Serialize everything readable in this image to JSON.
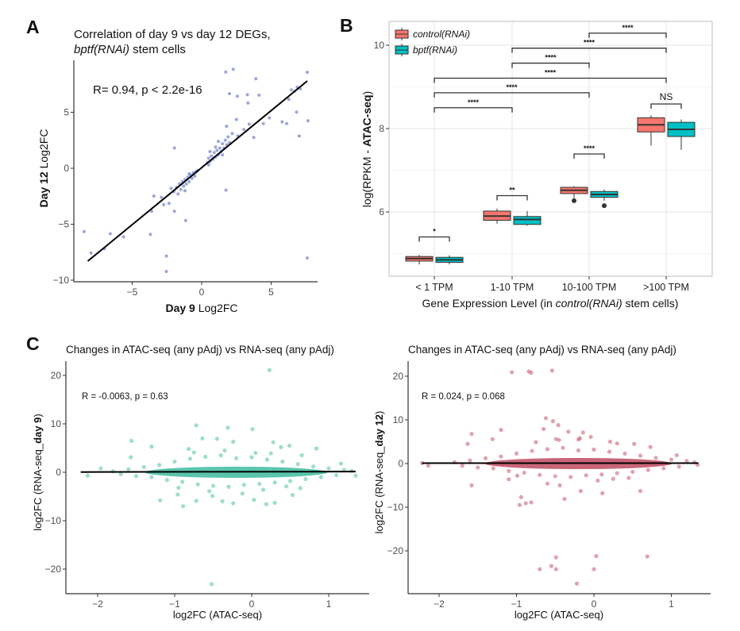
{
  "chart_data": [
    {
      "panel": "A",
      "type": "scatter",
      "title_line1": "Correlation of day 9 vs day 12 DEGs,",
      "title_line2_italic": "bptf(RNAi)",
      "title_line2_rest": " stem cells",
      "annotation": "R= 0.94, p < 2.2e-16",
      "xlabel_bold": "Day 9",
      "xlabel_rest": " Log2FC",
      "ylabel_bold": "Day 12",
      "ylabel_rest": " Log2FC",
      "xticks": [
        "-5",
        "0",
        "5"
      ],
      "yticks": [
        "-10",
        "-5",
        "0",
        "5"
      ],
      "xlim": [
        -8.6,
        8.9
      ],
      "ylim": [
        -10.1,
        9.7
      ],
      "point_color": "#6677c4",
      "line_color": "#000000",
      "fit_line": [
        [
          -8.2,
          -8.3
        ],
        [
          7.6,
          7.8
        ]
      ],
      "points": [
        [
          1.73,
          8.6
        ],
        [
          2.27,
          8.85
        ],
        [
          7.6,
          8.58
        ],
        [
          3.9,
          8.0
        ],
        [
          2.0,
          6.67
        ],
        [
          2.56,
          6.44
        ],
        [
          3.29,
          6.58
        ],
        [
          3.33,
          5.83
        ],
        [
          4.13,
          6.53
        ],
        [
          6.83,
          5.02
        ],
        [
          7.65,
          4.25
        ],
        [
          7.02,
          2.88
        ],
        [
          5.79,
          4.15
        ],
        [
          6.12,
          3.99
        ],
        [
          4.87,
          4.5
        ],
        [
          4.44,
          3.99
        ],
        [
          3.75,
          2.76
        ],
        [
          6.88,
          7.24
        ],
        [
          6.46,
          7.0
        ],
        [
          6.27,
          6.16
        ],
        [
          7.1,
          7.1
        ],
        [
          6.7,
          6.9
        ],
        [
          2.5,
          4.36
        ],
        [
          1.79,
          3.75
        ],
        [
          3.04,
          3.47
        ],
        [
          3.42,
          3.94
        ],
        [
          2.2,
          3.1
        ],
        [
          2.6,
          2.9
        ],
        [
          -1.96,
          1.82
        ],
        [
          1.75,
          -1.96
        ],
        [
          -1.15,
          -4.67
        ],
        [
          -1.96,
          -3.84
        ],
        [
          -2.54,
          -7.85
        ],
        [
          -2.54,
          -9.22
        ],
        [
          -3.69,
          -5.9
        ],
        [
          -3.6,
          -3.84
        ],
        [
          -3.44,
          -2.48
        ],
        [
          -5.62,
          -6.13
        ],
        [
          -6.58,
          -5.85
        ],
        [
          -8.46,
          -5.66
        ],
        [
          -7.96,
          -7.57
        ],
        [
          -7.0,
          -7.19
        ],
        [
          7.6,
          -8.02
        ],
        [
          -2.73,
          -3.25
        ],
        [
          -2.35,
          -3.14
        ],
        [
          -2.9,
          -2.6
        ],
        [
          -2.0,
          -2.1
        ],
        [
          -1.8,
          -1.7
        ],
        [
          -1.6,
          -1.4
        ],
        [
          -1.5,
          -1.9
        ],
        [
          -1.4,
          -1.2
        ],
        [
          -1.3,
          -1.6
        ],
        [
          -1.2,
          -1.0
        ],
        [
          -1.1,
          -1.4
        ],
        [
          -1.0,
          -0.8
        ],
        [
          -0.9,
          -1.2
        ],
        [
          -0.8,
          -0.6
        ],
        [
          -0.7,
          -0.9
        ],
        [
          -0.6,
          -0.4
        ],
        [
          -0.5,
          -0.7
        ],
        [
          -0.4,
          -0.3
        ],
        [
          -0.3,
          -0.2
        ],
        [
          -1.7,
          -2.3
        ],
        [
          -1.2,
          -2.0
        ],
        [
          -0.9,
          -0.5
        ],
        [
          -2.2,
          -1.8
        ],
        [
          0.4,
          0.5
        ],
        [
          0.5,
          0.9
        ],
        [
          0.6,
          0.6
        ],
        [
          0.7,
          1.1
        ],
        [
          0.8,
          0.8
        ],
        [
          0.9,
          1.4
        ],
        [
          1.0,
          1.0
        ],
        [
          1.1,
          1.6
        ],
        [
          1.2,
          1.2
        ],
        [
          1.3,
          1.8
        ],
        [
          1.4,
          1.5
        ],
        [
          1.5,
          2.2
        ],
        [
          1.6,
          1.8
        ],
        [
          1.7,
          2.5
        ],
        [
          1.8,
          2.1
        ],
        [
          0.6,
          1.5
        ],
        [
          1.2,
          2.4
        ],
        [
          1.9,
          2.8
        ],
        [
          0.5,
          0.3
        ],
        [
          1.0,
          1.9
        ],
        [
          1.5,
          1.2
        ],
        [
          2.0,
          2.3
        ]
      ]
    },
    {
      "panel": "B",
      "type": "box",
      "categories": [
        "< 1 TPM",
        "1-10 TPM",
        "10-100 TPM",
        ">100 TPM"
      ],
      "xlabel_pre": "Gene Expression Level (in ",
      "xlabel_italic": "control(RNAi)",
      "xlabel_post": " stem cells)",
      "ylabel_pre": "log(RPKM - ",
      "ylabel_bold": "ATAC-seq",
      "ylabel_post": ")",
      "yticks": [
        "6",
        "8",
        "10"
      ],
      "ylim": [
        4.46,
        10.57
      ],
      "grid": true,
      "legend_position": "top-left",
      "series": [
        {
          "name": "control(RNAi)",
          "color": "#f8766d",
          "boxes": [
            {
              "low": 4.74,
              "q1": 4.82,
              "median": 4.88,
              "q3": 4.93,
              "high": 4.97,
              "outliers": []
            },
            {
              "low": 5.72,
              "q1": 5.8,
              "median": 5.9,
              "q3": 6.02,
              "high": 6.08,
              "outliers": []
            },
            {
              "low": 6.33,
              "q1": 6.44,
              "median": 6.52,
              "q3": 6.59,
              "high": 6.62,
              "outliers": [
                6.27
              ]
            },
            {
              "low": 7.59,
              "q1": 7.92,
              "median": 8.09,
              "q3": 8.26,
              "high": 8.32,
              "outliers": []
            }
          ]
        },
        {
          "name": "bptf(RNAi)",
          "color": "#00bfc4",
          "boxes": [
            {
              "low": 4.74,
              "q1": 4.79,
              "median": 4.85,
              "q3": 4.91,
              "high": 4.96,
              "outliers": []
            },
            {
              "low": 5.67,
              "q1": 5.7,
              "median": 5.82,
              "q3": 5.89,
              "high": 6.02,
              "outliers": []
            },
            {
              "low": 6.27,
              "q1": 6.35,
              "median": 6.42,
              "q3": 6.49,
              "high": 6.54,
              "outliers": [
                6.15
              ]
            },
            {
              "low": 7.49,
              "q1": 7.81,
              "median": 7.98,
              "q3": 8.15,
              "high": 8.22,
              "outliers": []
            }
          ]
        }
      ],
      "within_group_tests": [
        {
          "category": 0,
          "y": 5.4,
          "label": "*"
        },
        {
          "category": 1,
          "y": 6.39,
          "label": "**"
        },
        {
          "category": 2,
          "y": 7.39,
          "label": "****"
        },
        {
          "category": 3,
          "y": 8.59,
          "label": "NS"
        }
      ],
      "between_group_tests": [
        {
          "from": 0,
          "to": 1,
          "y": 8.5,
          "label": "****"
        },
        {
          "from": 0,
          "to": 2,
          "y": 8.86,
          "label": "****"
        },
        {
          "from": 0,
          "to": 3,
          "y": 9.21,
          "label": "****"
        },
        {
          "from": 1,
          "to": 2,
          "y": 9.57,
          "label": "****"
        },
        {
          "from": 1,
          "to": 3,
          "y": 9.93,
          "label": "****"
        },
        {
          "from": 2,
          "to": 3,
          "y": 10.29,
          "label": "****"
        }
      ]
    },
    {
      "panel": "C",
      "type": "scatter",
      "title": "Changes in ATAC-seq (any pAdj) vs RNA-seq (any pAdj)",
      "annotation": "R = -0.0063, p = 0.63",
      "xlabel": "log2FC (ATAC-seq)",
      "ylabel_pre": "log2FC (RNA-seq_",
      "ylabel_bold": "day 9",
      "ylabel_post": ")",
      "xticks": [
        "-2",
        "-1",
        "0",
        "1"
      ],
      "yticks": [
        "-20",
        "-10",
        "0",
        "10",
        "20"
      ],
      "xlim": [
        -2.41,
        1.53
      ],
      "ylim": [
        -25,
        23
      ],
      "point_color": "#3dbb9e",
      "fit_line": [
        [
          -2.22,
          0.05
        ],
        [
          1.35,
          0.15
        ]
      ],
      "points": [
        [
          0.23,
          21.1
        ],
        [
          -0.72,
          9.7
        ],
        [
          -0.31,
          9.2
        ],
        [
          0.01,
          8.9
        ],
        [
          -1.56,
          6.5
        ],
        [
          -1.3,
          5.3
        ],
        [
          -0.45,
          6.9
        ],
        [
          -0.24,
          6.3
        ],
        [
          0.28,
          6.2
        ],
        [
          0.49,
          5.5
        ],
        [
          0.84,
          4.9
        ],
        [
          1.16,
          1.8
        ],
        [
          -1.19,
          -5.8
        ],
        [
          -0.96,
          -4.6
        ],
        [
          -0.89,
          -7.0
        ],
        [
          -0.72,
          -5.9
        ],
        [
          -0.51,
          -4.9
        ],
        [
          -0.38,
          -6.0
        ],
        [
          -0.24,
          -6.4
        ],
        [
          -0.12,
          -4.4
        ],
        [
          0.03,
          -5.7
        ],
        [
          0.19,
          -6.6
        ],
        [
          0.3,
          -6.3
        ],
        [
          0.53,
          -4.7
        ],
        [
          0.63,
          -3.3
        ],
        [
          -0.52,
          -23.1
        ],
        [
          -1.96,
          0.8
        ],
        [
          -2.13,
          -0.7
        ],
        [
          1.35,
          -0.7
        ],
        [
          -1.57,
          3.1
        ],
        [
          0.65,
          3.5
        ],
        [
          -0.82,
          4.8
        ],
        [
          -0.64,
          7.0
        ],
        [
          0.38,
          5.2
        ],
        [
          -1.8,
          0.2
        ],
        [
          -1.7,
          -0.4
        ],
        [
          -1.6,
          0.6
        ],
        [
          -1.5,
          -0.8
        ],
        [
          -1.4,
          1.1
        ],
        [
          -1.3,
          -1.0
        ],
        [
          -1.2,
          1.5
        ],
        [
          -1.1,
          -1.6
        ],
        [
          -1.0,
          2.2
        ],
        [
          -0.9,
          -2.0
        ],
        [
          -0.8,
          2.8
        ],
        [
          -0.7,
          -2.5
        ],
        [
          -0.6,
          3.2
        ],
        [
          -0.5,
          -2.8
        ],
        [
          -0.4,
          3.5
        ],
        [
          -0.3,
          -3.0
        ],
        [
          -0.2,
          2.9
        ],
        [
          -0.1,
          -2.6
        ],
        [
          0.0,
          3.1
        ],
        [
          0.1,
          -2.4
        ],
        [
          0.2,
          2.6
        ],
        [
          0.3,
          -2.1
        ],
        [
          0.4,
          2.2
        ],
        [
          0.5,
          -1.8
        ],
        [
          0.6,
          1.7
        ],
        [
          0.7,
          -1.4
        ],
        [
          0.8,
          1.2
        ],
        [
          0.9,
          -1.0
        ],
        [
          1.0,
          0.8
        ],
        [
          1.1,
          -0.6
        ],
        [
          1.2,
          0.5
        ],
        [
          1.3,
          0.3
        ],
        [
          -0.75,
          4.1
        ],
        [
          -0.35,
          4.5
        ],
        [
          0.05,
          4.0
        ],
        [
          0.25,
          3.9
        ],
        [
          -0.55,
          -3.9
        ],
        [
          0.15,
          -3.6
        ],
        [
          -0.95,
          -3.2
        ],
        [
          0.45,
          -2.9
        ]
      ]
    },
    {
      "panel": "C-right",
      "type": "scatter",
      "title": "Changes in ATAC-seq (any pAdj) vs RNA-seq (any pAdj)",
      "annotation": "R = 0.024, p = 0.068",
      "xlabel": "log2FC (ATAC-seq)",
      "ylabel_pre": "log2FC (RNA-seq_",
      "ylabel_bold": "day 12",
      "ylabel_post": ")",
      "xticks": [
        "-2",
        "-1",
        "0",
        "1"
      ],
      "yticks": [
        "-20",
        "-10",
        "0",
        "10",
        "20"
      ],
      "xlim": [
        -2.41,
        1.51
      ],
      "ylim": [
        -29.8,
        23.5
      ],
      "point_color": "#c04a60",
      "fit_line": [
        [
          -2.22,
          0.1
        ],
        [
          1.35,
          0.1
        ]
      ],
      "points": [
        [
          -1.06,
          20.9
        ],
        [
          -0.84,
          21.1
        ],
        [
          -0.81,
          20.8
        ],
        [
          -0.54,
          21.3
        ],
        [
          -0.62,
          10.4
        ],
        [
          -0.53,
          9.7
        ],
        [
          -0.46,
          8.8
        ],
        [
          -0.65,
          7.9
        ],
        [
          -1.2,
          7.7
        ],
        [
          -1.58,
          6.8
        ],
        [
          -1.31,
          5.6
        ],
        [
          -1.63,
          4.5
        ],
        [
          -0.33,
          7.3
        ],
        [
          -0.14,
          7.1
        ],
        [
          -0.04,
          6.1
        ],
        [
          -0.49,
          5.6
        ],
        [
          -0.18,
          5.8
        ],
        [
          0.21,
          5.0
        ],
        [
          0.52,
          4.5
        ],
        [
          0.73,
          3.8
        ],
        [
          1.07,
          1.9
        ],
        [
          -1.58,
          -5.0
        ],
        [
          -0.96,
          -9.5
        ],
        [
          -0.88,
          -9.1
        ],
        [
          -0.81,
          -8.9
        ],
        [
          -0.94,
          -7.7
        ],
        [
          -0.38,
          -8.1
        ],
        [
          0.11,
          -6.8
        ],
        [
          0.6,
          -6.3
        ],
        [
          0.25,
          -3.5
        ],
        [
          -0.17,
          -6.3
        ],
        [
          -0.49,
          -21.5
        ],
        [
          -0.7,
          -24.2
        ],
        [
          -0.55,
          -23.5
        ],
        [
          -0.49,
          -24.2
        ],
        [
          -0.22,
          -27.5
        ],
        [
          0.0,
          -24.2
        ],
        [
          0.03,
          -21.2
        ],
        [
          0.69,
          -21.3
        ],
        [
          -2.22,
          0.1
        ],
        [
          -2.14,
          -0.5
        ],
        [
          1.34,
          -0.3
        ],
        [
          -0.99,
          -2.8
        ],
        [
          -0.44,
          -5.0
        ],
        [
          -1.8,
          0.3
        ],
        [
          -1.7,
          -0.5
        ],
        [
          -1.6,
          0.7
        ],
        [
          -1.5,
          -0.9
        ],
        [
          -1.4,
          1.2
        ],
        [
          -1.3,
          -1.1
        ],
        [
          -1.2,
          1.6
        ],
        [
          -1.1,
          -1.7
        ],
        [
          -1.0,
          2.3
        ],
        [
          -0.9,
          -2.1
        ],
        [
          -0.8,
          2.9
        ],
        [
          -0.7,
          -2.6
        ],
        [
          -0.6,
          3.3
        ],
        [
          -0.5,
          -2.9
        ],
        [
          -0.4,
          3.6
        ],
        [
          -0.3,
          -3.1
        ],
        [
          -0.2,
          3.0
        ],
        [
          -0.1,
          -2.7
        ],
        [
          0.0,
          3.2
        ],
        [
          0.1,
          -2.5
        ],
        [
          0.2,
          2.7
        ],
        [
          0.3,
          -2.2
        ],
        [
          0.4,
          2.3
        ],
        [
          0.5,
          -1.9
        ],
        [
          0.6,
          1.8
        ],
        [
          0.7,
          -1.5
        ],
        [
          0.8,
          1.3
        ],
        [
          0.9,
          -1.1
        ],
        [
          1.0,
          0.9
        ],
        [
          1.1,
          -0.7
        ],
        [
          1.2,
          0.6
        ],
        [
          1.3,
          0.3
        ],
        [
          -0.45,
          5.4
        ],
        [
          -0.2,
          5.5
        ],
        [
          -0.75,
          4.9
        ],
        [
          0.3,
          4.6
        ],
        [
          -0.6,
          -4.6
        ],
        [
          0.05,
          -3.9
        ],
        [
          -1.1,
          -3.6
        ],
        [
          0.45,
          -3.3
        ]
      ]
    }
  ],
  "panel_labels": [
    "A",
    "B",
    "C"
  ]
}
